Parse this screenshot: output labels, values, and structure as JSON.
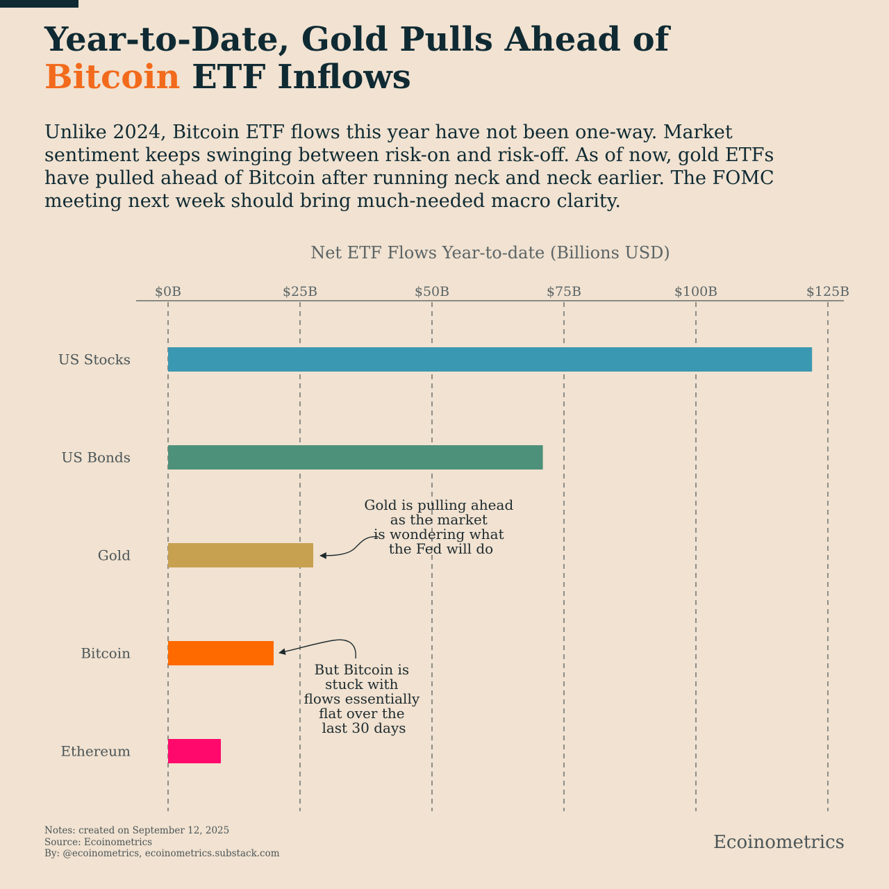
{
  "header": {
    "title_line1": "Year-to-Date, Gold Pulls Ahead of",
    "title_accent": "Bitcoin",
    "title_rest": " ETF Inflows",
    "subtitle": "Unlike 2024, Bitcoin ETF flows this year have not been one-way. Market sentiment keeps swinging between risk-on and risk-off. As of now, gold ETFs have pulled ahead of Bitcoin after running neck and neck earlier. The FOMC meeting next week should bring much-needed macro clarity."
  },
  "colors": {
    "background": "#f1e2d1",
    "title": "#0f2a33",
    "accent": "#f26a1b"
  },
  "chart_data": {
    "type": "bar",
    "orientation": "horizontal",
    "title": "Net ETF Flows Year-to-date (Billions USD)",
    "categories": [
      "US Stocks",
      "US Bonds",
      "Gold",
      "Bitcoin",
      "Ethereum"
    ],
    "values": [
      122,
      71,
      27.5,
      20,
      10
    ],
    "colors": [
      "#3b98b2",
      "#4e917a",
      "#c7a150",
      "#ff6a00",
      "#ff0a6c"
    ],
    "xlim": [
      0,
      125
    ],
    "xticks": [
      0,
      25,
      50,
      75,
      100,
      125
    ],
    "xtick_labels": [
      "$0B",
      "$25B",
      "$50B",
      "$75B",
      "$100B",
      "$125B"
    ],
    "grid": "vertical dashed",
    "annotations": [
      {
        "target": "Gold",
        "lines": [
          "Gold is pulling ahead",
          "as the market",
          "is wondering what",
          "the Fed will do"
        ]
      },
      {
        "target": "Bitcoin",
        "lines": [
          "But Bitcoin is",
          "stuck with",
          "flows essentially",
          "flat over the",
          "last 30 days"
        ]
      }
    ]
  },
  "footer": {
    "notes": "Notes: created on September 12, 2025",
    "source": "Source: Ecoinometrics",
    "by": "By: @ecoinometrics, ecoinometrics.substack.com",
    "brand": "Ecoinometrics"
  }
}
